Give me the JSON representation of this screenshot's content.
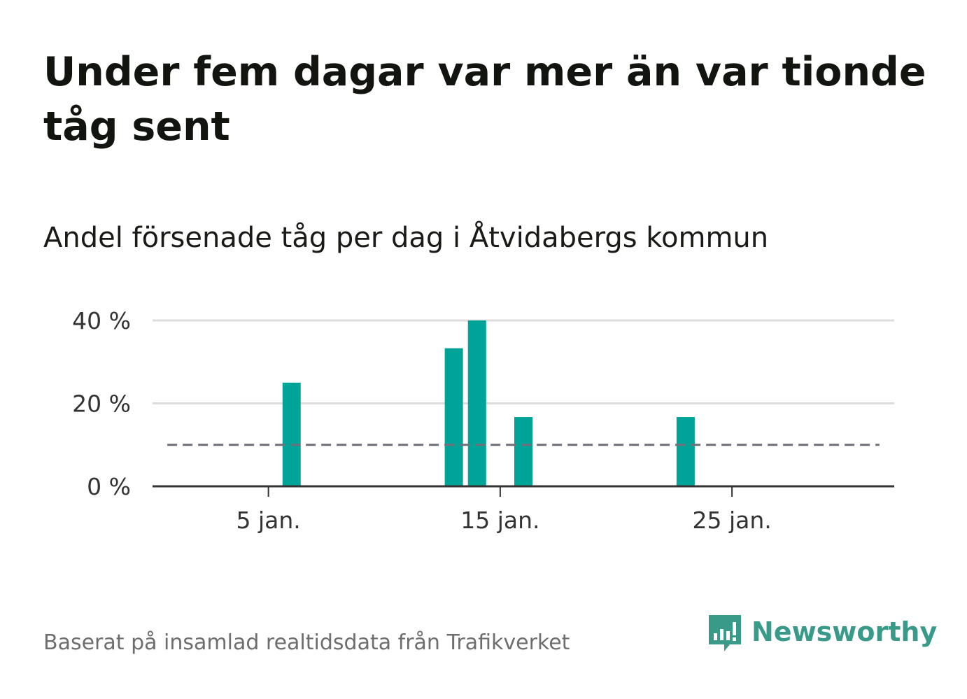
{
  "title": "Under fem dagar var mer än var tionde tåg sent",
  "subtitle": "Andel försenade tåg per dag i Åtvidabergs kommun",
  "source": "Baserat på insamlad realtidsdata från Trafikverket",
  "brand": {
    "name": "Newsworthy",
    "icon": "newsworthy-logo-icon",
    "color": "#3a9a8a"
  },
  "colors": {
    "bar": "#00a398",
    "reference_line": "#6f6f78",
    "grid": "#dddddd",
    "axis": "#333333"
  },
  "chart_data": {
    "type": "bar",
    "x_unit": "day of January",
    "y_unit": "%",
    "x_range": [
      0,
      32
    ],
    "ylim": [
      0,
      40
    ],
    "y_ticks": [
      {
        "value": 0,
        "label": "0 %"
      },
      {
        "value": 20,
        "label": "20 %"
      },
      {
        "value": 40,
        "label": "40 %"
      }
    ],
    "x_ticks": [
      {
        "value": 5,
        "label": "5 jan."
      },
      {
        "value": 15,
        "label": "15 jan."
      },
      {
        "value": 25,
        "label": "25 jan."
      }
    ],
    "bars": [
      {
        "day": 6,
        "value": 25
      },
      {
        "day": 13,
        "value": 33.3
      },
      {
        "day": 14,
        "value": 40
      },
      {
        "day": 16,
        "value": 16.7
      },
      {
        "day": 23,
        "value": 16.7
      }
    ],
    "reference_line": {
      "value": 10,
      "from_day": 1,
      "to_day": 31,
      "style": "dashed"
    },
    "grid": true,
    "legend": false
  }
}
